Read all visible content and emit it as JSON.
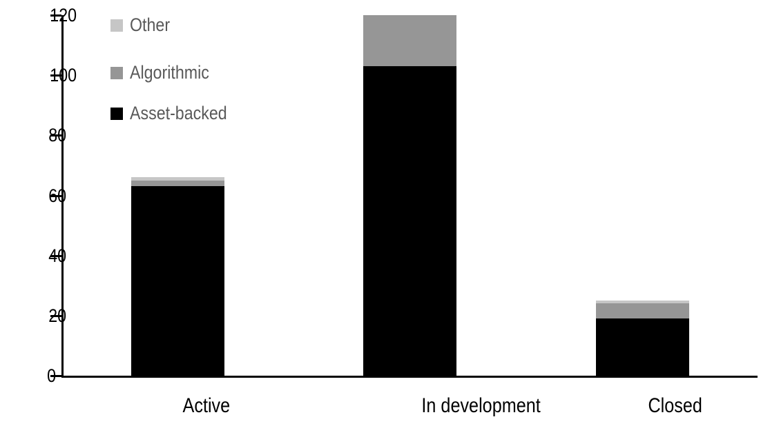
{
  "chart_data": {
    "type": "bar",
    "stacked": true,
    "title": "",
    "categories": [
      "Active",
      "In development",
      "Closed"
    ],
    "series": [
      {
        "name": "Asset-backed",
        "color": "#000000",
        "values": [
          63,
          103,
          19
        ]
      },
      {
        "name": "Algorithmic",
        "color": "#969696",
        "values": [
          2,
          17,
          5
        ]
      },
      {
        "name": "Other",
        "color": "#c6c6c6",
        "values": [
          1,
          0,
          1
        ]
      }
    ],
    "stack_totals": [
      66,
      120,
      25
    ],
    "y_axis": {
      "min": 0,
      "max": 120,
      "tick_interval": 20,
      "tick_labels": [
        "0",
        "20",
        "40",
        "60",
        "80",
        "100",
        "120"
      ]
    },
    "x_axis": {
      "labels": [
        "Active",
        "In development",
        "Closed"
      ]
    },
    "legend": {
      "position": "top-left",
      "text_color": "#595959",
      "entries": [
        {
          "label": "Other",
          "color": "#c6c6c6"
        },
        {
          "label": "Algorithmic",
          "color": "#969696"
        },
        {
          "label": "Asset-backed",
          "color": "#000000"
        }
      ]
    },
    "grid": false,
    "background": "#ffffff",
    "axis_color": "#000000"
  }
}
